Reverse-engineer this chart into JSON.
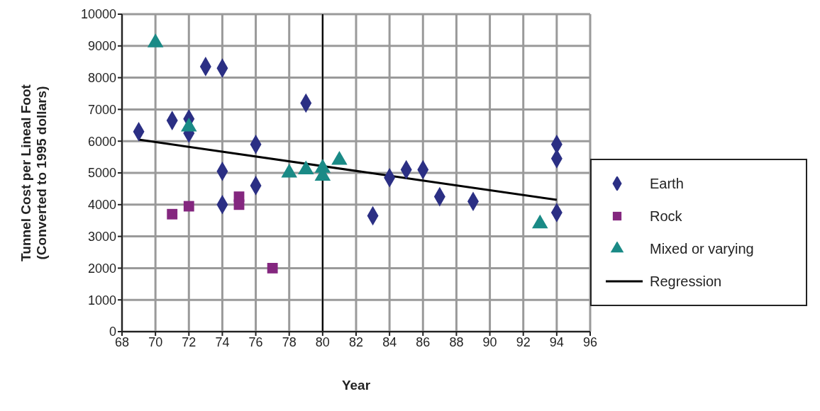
{
  "chart_data": {
    "type": "scatter",
    "xlabel": "Year",
    "ylabel": "Tunnel Cost per Lineal Foot\n(Converted to 1995 dollars)",
    "xlim": [
      68,
      96
    ],
    "xticks": [
      68,
      70,
      72,
      74,
      76,
      78,
      80,
      82,
      84,
      86,
      88,
      90,
      92,
      94,
      96
    ],
    "ylim": [
      0,
      10000
    ],
    "yticks": [
      0,
      1000,
      2000,
      3000,
      4000,
      5000,
      6000,
      7000,
      8000,
      9000,
      10000
    ],
    "grid": true,
    "legend": "right",
    "ref_lines": [
      {
        "axis": "x",
        "value": 80,
        "color": "#000000"
      }
    ],
    "series": [
      {
        "name": "Earth",
        "color": "#2b2f84",
        "marker": "diamond",
        "x": [
          69,
          71,
          72,
          72,
          73,
          74,
          74,
          74,
          76,
          76,
          79,
          83,
          84,
          85,
          86,
          87,
          89,
          94,
          94,
          94
        ],
        "values": [
          6300,
          6650,
          6700,
          6250,
          8350,
          8300,
          5050,
          4000,
          5900,
          4600,
          7200,
          3650,
          4850,
          5100,
          5100,
          4250,
          4100,
          5900,
          5450,
          3750
        ]
      },
      {
        "name": "Rock",
        "color": "#84277f",
        "marker": "square",
        "x": [
          71,
          72,
          75,
          75,
          77
        ],
        "values": [
          3700,
          3950,
          4250,
          4000,
          2000
        ]
      },
      {
        "name": "Mixed or varying",
        "color": "#1a8a86",
        "marker": "triangle",
        "x": [
          70,
          72,
          78,
          79,
          80,
          80,
          81,
          93
        ],
        "values": [
          9100,
          6450,
          5000,
          5100,
          5150,
          4900,
          5400,
          3400
        ]
      },
      {
        "name": "Regression",
        "type": "line",
        "color": "#000000",
        "marker": "none",
        "line_style": "solid",
        "x": [
          69,
          94
        ],
        "values": [
          6050,
          4150
        ]
      }
    ]
  }
}
